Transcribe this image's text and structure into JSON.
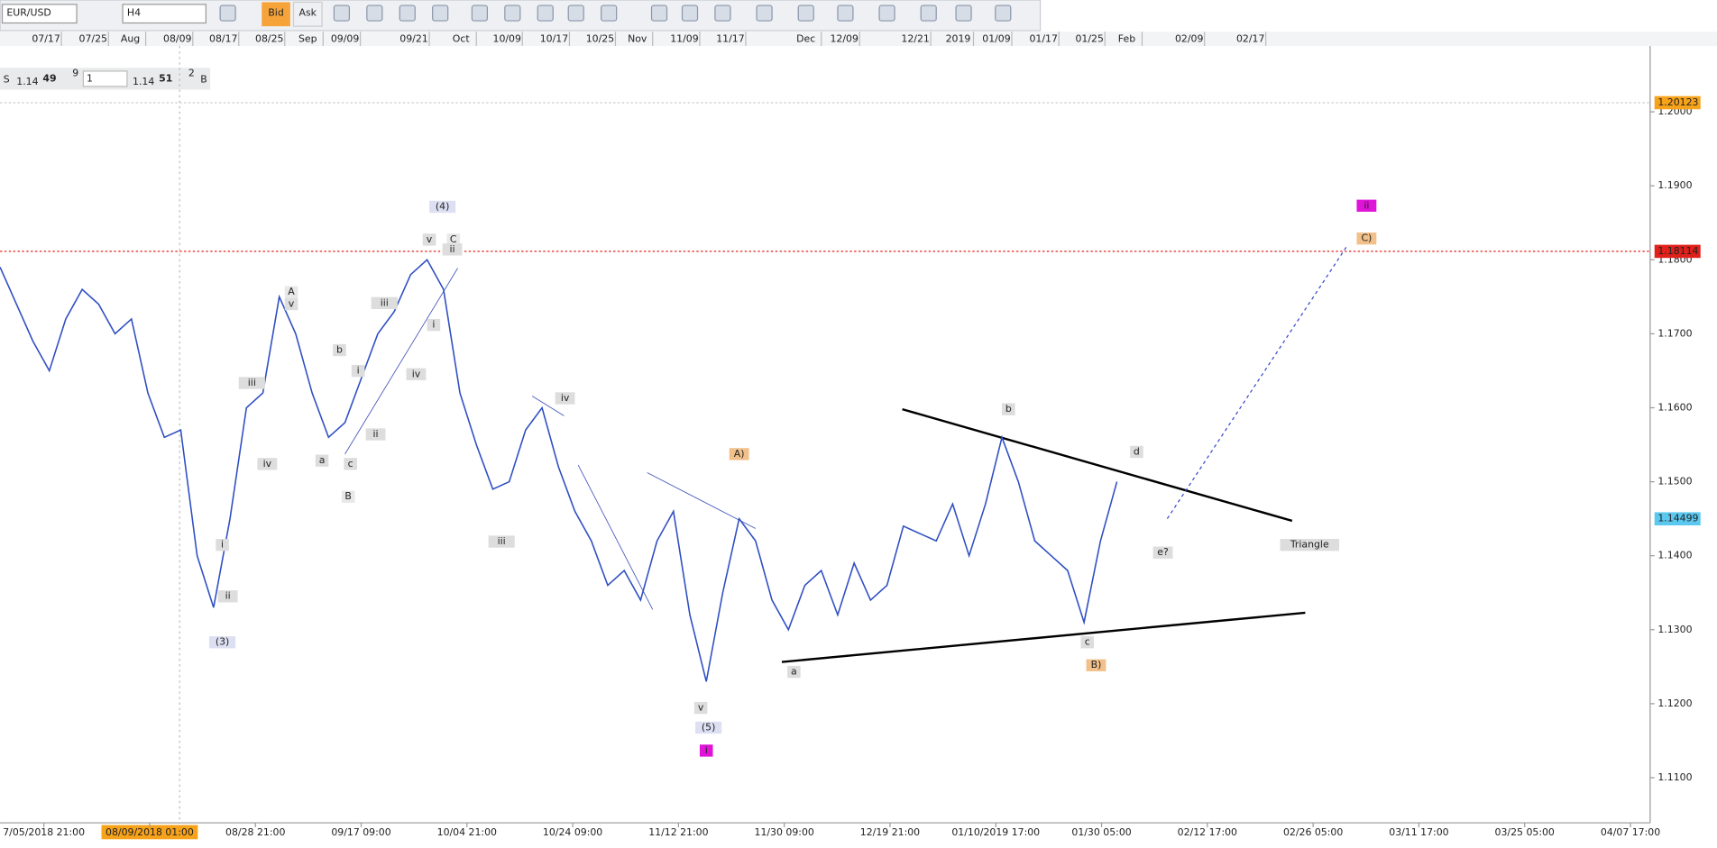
{
  "toolbar": {
    "symbol": "EUR/USD",
    "timeframe": "H4",
    "bid": "Bid",
    "ask": "Ask"
  },
  "quote": {
    "sell": "S",
    "sell_big": "1.14",
    "sell_pips": "49",
    "sell_frac": "9",
    "lot": "1",
    "buy_big": "1.14",
    "buy_pips": "51",
    "buy_frac": "2",
    "buy": "B"
  },
  "top_dates": [
    [
      "07/17",
      42
    ],
    [
      "07/25",
      85
    ],
    [
      "Aug",
      119
    ],
    [
      "08/09",
      162
    ],
    [
      "08/17",
      204
    ],
    [
      "08/25",
      246
    ],
    [
      "Sep",
      281
    ],
    [
      "09/09",
      315
    ],
    [
      "09/21",
      378
    ],
    [
      "Oct",
      421
    ],
    [
      "10/09",
      463
    ],
    [
      "10/17",
      506
    ],
    [
      "10/25",
      548
    ],
    [
      "Nov",
      582
    ],
    [
      "11/09",
      625
    ],
    [
      "11/17",
      667
    ],
    [
      "Dec",
      736
    ],
    [
      "12/09",
      771
    ],
    [
      "12/21",
      836
    ],
    [
      "2019",
      875
    ],
    [
      "01/09",
      910
    ],
    [
      "01/17",
      953
    ],
    [
      "01/25",
      995
    ],
    [
      "Feb",
      1029
    ],
    [
      "02/09",
      1086
    ],
    [
      "02/17",
      1142
    ]
  ],
  "bottom_dates": [
    "7/05/2018 21:00",
    "08/09/2018 01:00",
    "08/28 21:00",
    "09/17 09:00",
    "10/04 21:00",
    "10/24 09:00",
    "11/12 21:00",
    "11/30 09:00",
    "12/19 21:00",
    "01/10/2019 17:00",
    "01/30 05:00",
    "02/12 17:00",
    "02/26 05:00",
    "03/11 17:00",
    "03/25 05:00",
    "04/07 17:00"
  ],
  "price_axis": {
    "ylim": [
      1.1039,
      1.2089
    ],
    "yticks": [
      {
        "value": 1.2,
        "label": "1.2000"
      },
      {
        "value": 1.19,
        "label": "1.1900"
      },
      {
        "value": 1.18,
        "label": "1.1800"
      },
      {
        "value": 1.17,
        "label": "1.1700"
      },
      {
        "value": 1.16,
        "label": "1.1600"
      },
      {
        "value": 1.15,
        "label": "1.1500"
      },
      {
        "value": 1.14,
        "label": "1.1400"
      },
      {
        "value": 1.13,
        "label": "1.1300"
      },
      {
        "value": 1.12,
        "label": "1.1200"
      },
      {
        "value": 1.11,
        "label": "1.1100"
      }
    ]
  },
  "price_levels": [
    {
      "value": 1.20123,
      "color": "#f7a21b"
    },
    {
      "value": 1.18114,
      "color": "#e0201a"
    },
    {
      "value": 1.14499,
      "color": "#5bc8f0"
    }
  ],
  "price_trace": {
    "color": "#2f4fc2",
    "values": [
      1.179,
      1.174,
      1.169,
      1.165,
      1.172,
      1.176,
      1.174,
      1.17,
      1.172,
      1.162,
      1.156,
      1.157,
      1.14,
      1.133,
      1.145,
      1.16,
      1.162,
      1.175,
      1.17,
      1.162,
      1.156,
      1.158,
      1.164,
      1.17,
      1.173,
      1.178,
      1.18,
      1.176,
      1.162,
      1.155,
      1.149,
      1.15,
      1.157,
      1.16,
      1.152,
      1.146,
      1.142,
      1.136,
      1.138,
      1.134,
      1.142,
      1.146,
      1.132,
      1.123,
      1.135,
      1.145,
      1.142,
      1.134,
      1.13,
      1.136,
      1.138,
      1.132,
      1.139,
      1.134,
      1.136,
      1.144,
      1.143,
      1.142,
      1.147,
      1.14,
      1.147,
      1.156,
      1.15,
      1.142,
      1.14,
      1.138,
      1.131,
      1.142,
      1.15
    ]
  },
  "wave_labels": [
    [
      "(4)",
      404,
      189,
      "b"
    ],
    [
      "v",
      392,
      219,
      "g"
    ],
    [
      "C",
      414,
      219,
      "r"
    ],
    [
      "ii",
      413,
      228,
      "g"
    ],
    [
      "A",
      266,
      267,
      "r"
    ],
    [
      "v",
      266,
      278,
      "g"
    ],
    [
      "iii",
      351,
      277,
      "g"
    ],
    [
      "b",
      310,
      320,
      "g"
    ],
    [
      "i",
      327,
      339,
      "g"
    ],
    [
      "iv",
      380,
      342,
      "g"
    ],
    [
      "i",
      396,
      297,
      "g"
    ],
    [
      "iii",
      230,
      350,
      "g"
    ],
    [
      "iv",
      244,
      424,
      "g"
    ],
    [
      "a",
      294,
      421,
      "g"
    ],
    [
      "c",
      320,
      424,
      "g"
    ],
    [
      "ii",
      343,
      397,
      "g"
    ],
    [
      "B",
      318,
      454,
      "r"
    ],
    [
      "i",
      203,
      498,
      "g"
    ],
    [
      "ii",
      208,
      545,
      "g"
    ],
    [
      "(3)",
      203,
      587,
      "b"
    ],
    [
      "iv",
      516,
      364,
      "g"
    ],
    [
      "iii",
      458,
      495,
      "g"
    ],
    [
      "A)",
      675,
      415,
      "o"
    ],
    [
      "v",
      640,
      647,
      "g"
    ],
    [
      "(5)",
      647,
      665,
      "b"
    ],
    [
      "i",
      645,
      686,
      "m"
    ],
    [
      "a",
      725,
      614,
      "g"
    ],
    [
      "b",
      921,
      374,
      "g"
    ],
    [
      "d",
      1038,
      413,
      "g"
    ],
    [
      "e?",
      1062,
      505,
      "g"
    ],
    [
      "c",
      993,
      587,
      "g"
    ],
    [
      "B)",
      1001,
      608,
      "o"
    ],
    [
      "Triangle",
      1196,
      498,
      "g"
    ],
    [
      "C)",
      1248,
      218,
      "o"
    ],
    [
      "ii",
      1248,
      188,
      "m"
    ]
  ]
}
